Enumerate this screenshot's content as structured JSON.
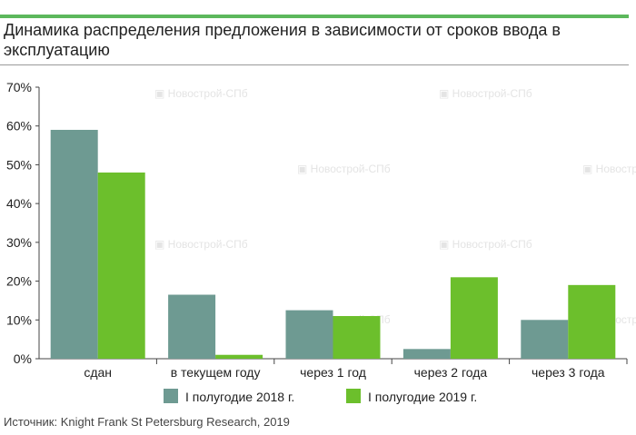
{
  "title": "Динамика распределения предложения в зависимости от сроков ввода в эксплуатацию",
  "source": "Источник: Knight Frank St Petersburg Research, 2019",
  "watermark": "Новострой-СПб",
  "chart_data": {
    "type": "bar",
    "categories": [
      "сдан",
      "в текущем году",
      "через 1 год",
      "через 2 года",
      "через 3 года"
    ],
    "series": [
      {
        "name": "I полугодие 2018 г.",
        "color": "#6e9a92",
        "values": [
          59,
          16.5,
          12.5,
          2.5,
          10
        ]
      },
      {
        "name": "I полугодие 2019 г.",
        "color": "#6cbf2c",
        "values": [
          48,
          1,
          11,
          21,
          19
        ]
      }
    ],
    "ylim": [
      0,
      70
    ],
    "yticks": [
      "0%",
      "10%",
      "20%",
      "30%",
      "40%",
      "50%",
      "60%",
      "70%"
    ],
    "grid": false,
    "legend_position": "bottom"
  }
}
